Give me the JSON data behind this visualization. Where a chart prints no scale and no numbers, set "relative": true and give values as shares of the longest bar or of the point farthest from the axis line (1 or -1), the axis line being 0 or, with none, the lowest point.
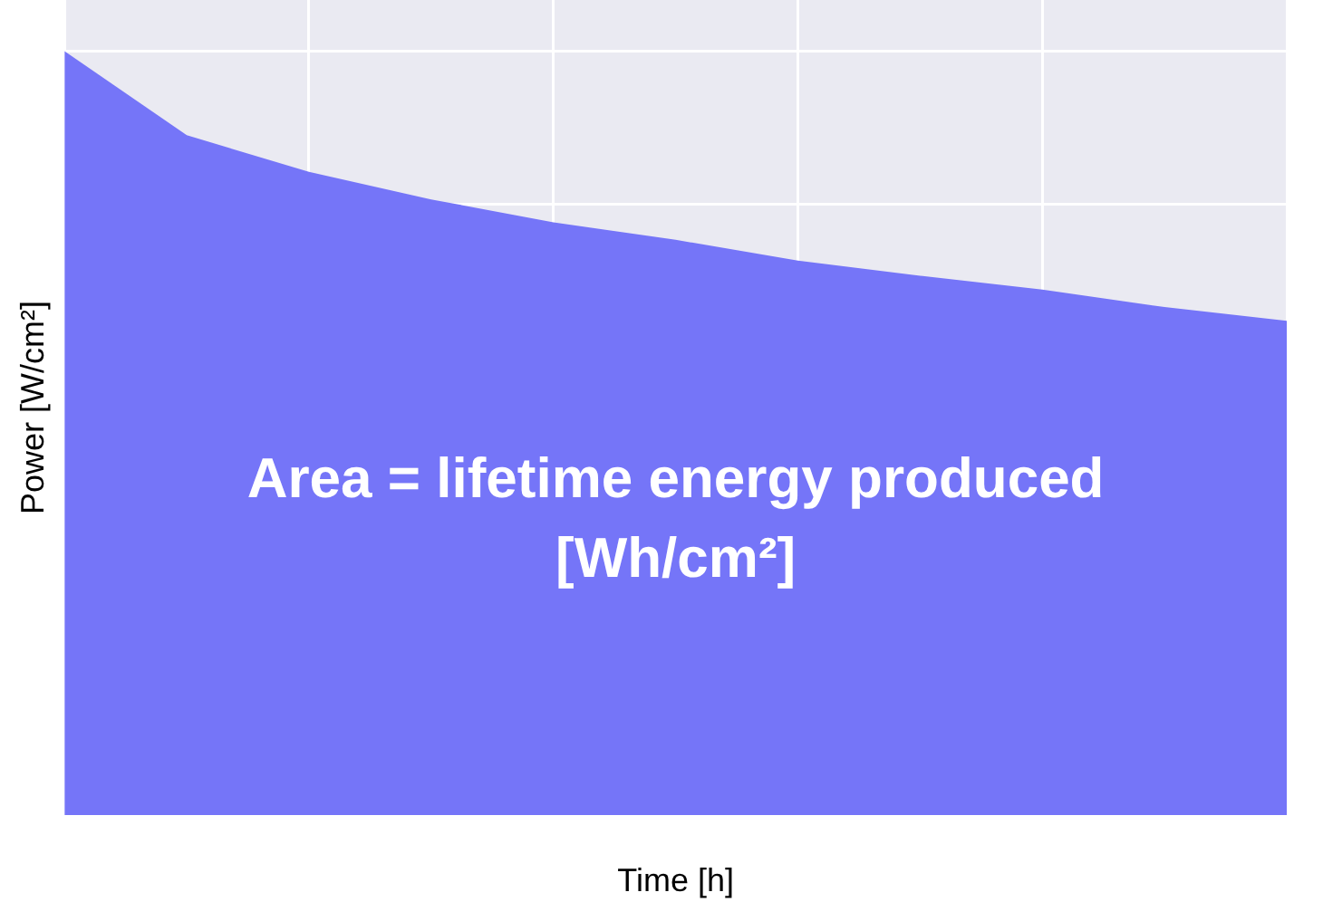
{
  "chart_data": {
    "type": "area",
    "relative": true,
    "xlabel": "Time [h]",
    "ylabel": "Power [W/cm²]",
    "categories": [
      null,
      null,
      null,
      null,
      null,
      null,
      null,
      null,
      null,
      null,
      null
    ],
    "series": [
      {
        "color": "#7575f8",
        "values": [
          1,
          0.89,
          0.842,
          0.806,
          0.776,
          0.753,
          0.726,
          0.706,
          0.688,
          0.665,
          0.647
        ]
      }
    ],
    "annotations": [
      "Area = lifetime energy produced [Wh/cm²]"
    ],
    "grid": true,
    "legend": false
  }
}
